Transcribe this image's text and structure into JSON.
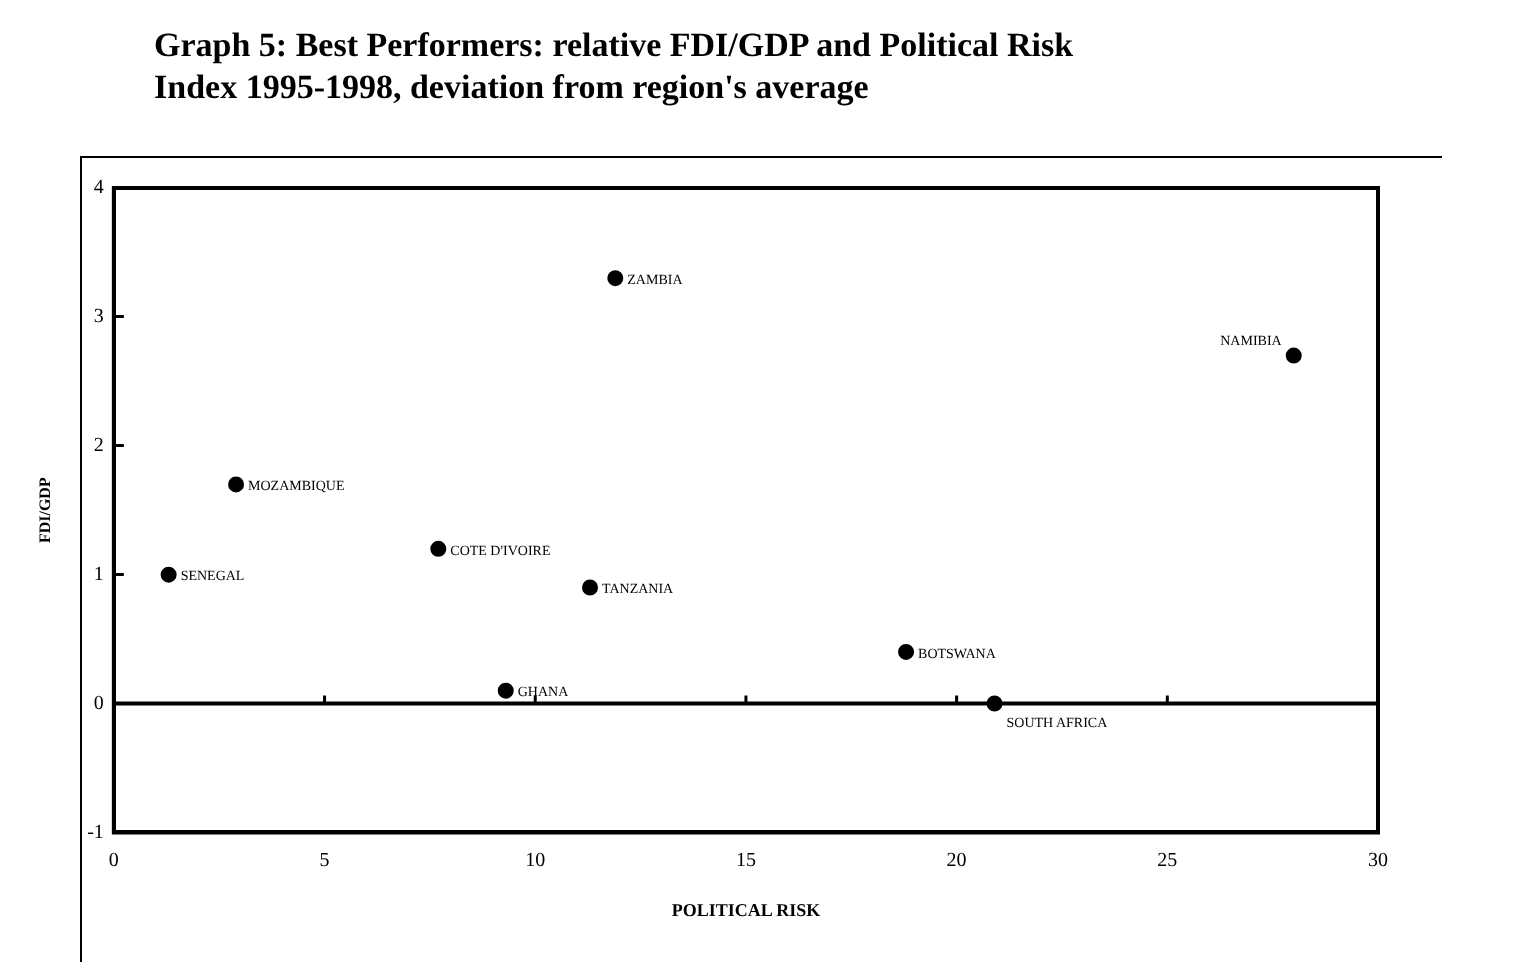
{
  "chart_data": {
    "type": "scatter",
    "title": "Graph 5: Best Performers: relative FDI/GDP and Political Risk Index 1995-1998, deviation from region's average",
    "xlabel": "POLITICAL RISK",
    "ylabel": "FDI/GDP",
    "x": [
      1.3,
      2.9,
      7.7,
      11.9,
      11.3,
      9.3,
      28.0,
      18.8,
      20.9
    ],
    "series": [
      {
        "color": "#000000",
        "values": [
          1.0,
          1.7,
          1.2,
          3.3,
          0.9,
          0.1,
          2.7,
          0.4,
          0.0
        ]
      }
    ],
    "annotations": [
      {
        "text": "SENEGAL",
        "x": 1.3,
        "y": 1.0
      },
      {
        "text": "MOZAMBIQUE",
        "x": 2.9,
        "y": 1.7
      },
      {
        "text": "COTE D'IVOIRE",
        "x": 7.7,
        "y": 1.2
      },
      {
        "text": "ZAMBIA",
        "x": 11.9,
        "y": 3.3
      },
      {
        "text": "TANZANIA",
        "x": 11.3,
        "y": 0.9
      },
      {
        "text": "GHANA",
        "x": 9.3,
        "y": 0.1
      },
      {
        "text": "NAMIBIA",
        "x": 28.0,
        "y": 2.7
      },
      {
        "text": "BOTSWANA",
        "x": 18.8,
        "y": 0.4
      },
      {
        "text": "SOUTH AFRICA",
        "x": 20.9,
        "y": 0.0
      }
    ],
    "xlim": [
      0,
      30
    ],
    "xticks": [
      0,
      5,
      10,
      15,
      20,
      25,
      30
    ],
    "ylim": [
      -1,
      4
    ],
    "yticks": [
      -1,
      0,
      1,
      2,
      3,
      4
    ],
    "ref_lines": [
      {
        "axis": "y",
        "value": 0,
        "color": "#000000"
      }
    ],
    "grid": false,
    "legend": false,
    "marker": "circle"
  }
}
